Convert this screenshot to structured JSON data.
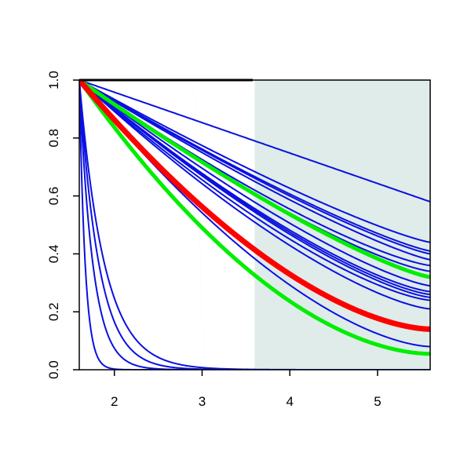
{
  "chart_data": {
    "type": "line",
    "title": "",
    "xlabel": "",
    "ylabel": "",
    "xlim": [
      1.6,
      5.6
    ],
    "ylim": [
      0.0,
      1.0
    ],
    "x_ticks": [
      2,
      3,
      4,
      5
    ],
    "y_ticks": [
      0.0,
      0.2,
      0.4,
      0.6,
      0.8,
      1.0
    ],
    "x_tick_labels": [
      "2",
      "3",
      "4",
      "5"
    ],
    "y_tick_labels": [
      "0.0",
      "0.2",
      "0.4",
      "0.6",
      "0.8",
      "1.0"
    ],
    "grid": false,
    "legend": "none",
    "shaded_region": {
      "x": [
        3.6,
        5.6
      ],
      "color": "#dfecea"
    },
    "x0": 1.6,
    "colors": {
      "decay": "#0a10e0",
      "reference": "#ff0000",
      "bounds": "#00ee00"
    },
    "series": [
      {
        "style": "decay",
        "kind": "linear",
        "end_y": 0.58
      },
      {
        "style": "decay",
        "kind": "power",
        "end_y": 0.44,
        "p": 1.2
      },
      {
        "style": "decay",
        "kind": "power",
        "end_y": 0.41,
        "p": 1.2
      },
      {
        "style": "decay",
        "kind": "power",
        "end_y": 0.4,
        "p": 1.2
      },
      {
        "style": "decay",
        "kind": "power",
        "end_y": 0.38,
        "p": 1.2
      },
      {
        "style": "decay",
        "kind": "power",
        "end_y": 0.36,
        "p": 1.3
      },
      {
        "style": "decay",
        "kind": "power",
        "end_y": 0.34,
        "p": 1.3
      },
      {
        "style": "decay",
        "kind": "power",
        "end_y": 0.29,
        "p": 1.3
      },
      {
        "style": "decay",
        "kind": "power",
        "end_y": 0.27,
        "p": 1.35
      },
      {
        "style": "decay",
        "kind": "power",
        "end_y": 0.26,
        "p": 1.35
      },
      {
        "style": "decay",
        "kind": "power",
        "end_y": 0.25,
        "p": 1.35
      },
      {
        "style": "decay",
        "kind": "power",
        "end_y": 0.24,
        "p": 1.4
      },
      {
        "style": "decay",
        "kind": "power",
        "end_y": 0.21,
        "p": 1.4
      },
      {
        "style": "decay",
        "kind": "power",
        "end_y": 0.08,
        "p": 1.6
      },
      {
        "style": "decay",
        "kind": "step",
        "x_step": 2.97,
        "width": 0.02
      },
      {
        "style": "decay",
        "kind": "step",
        "x_step": 1.72,
        "width": 0.01
      },
      {
        "style": "decay",
        "kind": "step",
        "x_step": 1.63,
        "width": 0.008
      },
      {
        "style": "decay",
        "kind": "step",
        "x_step": 1.61,
        "width": 0.006
      },
      {
        "style": "decay",
        "kind": "exp",
        "rate": 3.5
      },
      {
        "style": "decay",
        "kind": "exp",
        "rate": 4.5
      },
      {
        "style": "decay",
        "kind": "exp",
        "rate": 6.5
      },
      {
        "style": "decay",
        "kind": "exp",
        "rate": 15.0
      },
      {
        "style": "bounds",
        "kind": "power",
        "end_y": 0.32,
        "p": 1.25,
        "width": 5
      },
      {
        "style": "bounds",
        "kind": "power",
        "end_y": 0.055,
        "p": 1.8,
        "width": 5
      },
      {
        "style": "reference",
        "kind": "power",
        "end_y": 0.14,
        "p": 1.65,
        "width": 7
      }
    ]
  }
}
